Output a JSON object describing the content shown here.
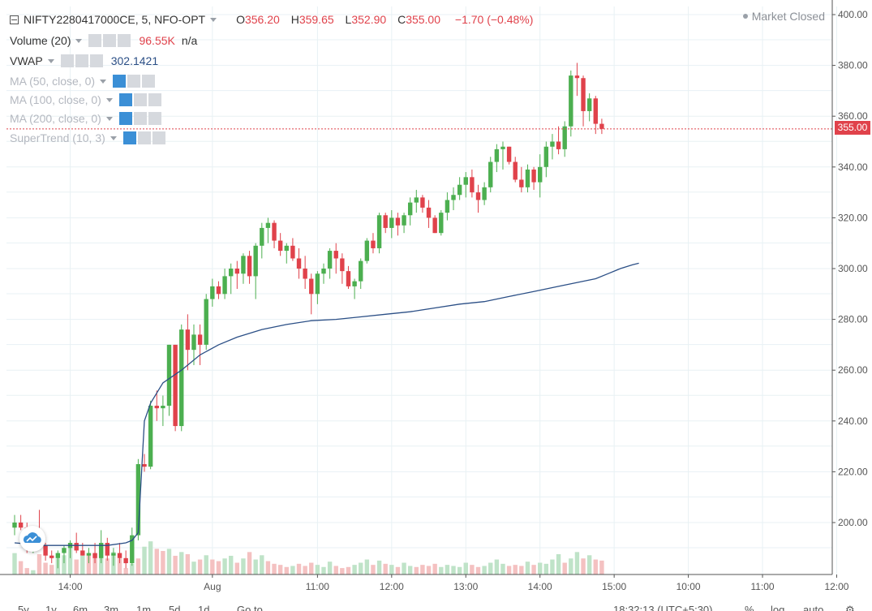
{
  "symbol_bar": {
    "symbol": "NIFTY2280417000CE, 5, NFO-OPT",
    "open_label": "O",
    "open": "356.20",
    "high_label": "H",
    "high": "359.65",
    "low_label": "L",
    "low": "352.90",
    "close_label": "C",
    "close": "355.00",
    "change": "−1.70 (−0.48%)"
  },
  "status": {
    "market": "Market Closed"
  },
  "indicators": [
    {
      "name": "Volume (20)",
      "value": "96.55K",
      "value2": "n/a",
      "faded": false
    },
    {
      "name": "VWAP",
      "value": "302.1421",
      "faded": false
    },
    {
      "name": "MA (50, close, 0)",
      "faded": true
    },
    {
      "name": "MA (100, close, 0)",
      "faded": true
    },
    {
      "name": "MA (200, close, 0)",
      "faded": true
    },
    {
      "name": "SuperTrend (10, 3)",
      "faded": true
    }
  ],
  "price_tag": "355.00",
  "colors": {
    "up": "#4caf50",
    "down": "#e0424b",
    "vwap": "#2b4f86",
    "up_volume": "#bfe3c8",
    "down_volume": "#f4c1c1",
    "grid": "#e8f1f4"
  },
  "bottom_bar": {
    "timeframes": [
      "5y",
      "1y",
      "6m",
      "3m",
      "1m",
      "5d",
      "1d"
    ],
    "goto": "Go to...",
    "clock": "18:32:13 (UTC+5:30)",
    "percent": "%",
    "log": "log",
    "auto": "auto"
  },
  "chart_data": {
    "type": "candlestick",
    "ylim": [
      185,
      405
    ],
    "y_ticks": [
      "400.00",
      "380.00",
      "360.00",
      "340.00",
      "320.00",
      "300.00",
      "280.00",
      "260.00",
      "240.00",
      "220.00",
      "200.00"
    ],
    "y_tick_values": [
      400,
      380,
      360,
      340,
      320,
      300,
      280,
      260,
      240,
      220,
      200
    ],
    "x_ticks": [
      "14:00",
      "Aug",
      "11:00",
      "12:00",
      "13:00",
      "14:00",
      "15:00",
      "10:00",
      "11:00",
      "12:00"
    ],
    "x_tick_index": [
      9,
      32,
      49,
      61,
      73,
      85,
      97,
      109,
      121,
      133
    ],
    "last_price": 355.0,
    "candles": [
      [
        198,
        203,
        195,
        200
      ],
      [
        200,
        203,
        197,
        198
      ],
      [
        198,
        200,
        188,
        190
      ],
      [
        190,
        197,
        188,
        195
      ],
      [
        195,
        205,
        190,
        191
      ],
      [
        191,
        192,
        185,
        187
      ],
      [
        187,
        189,
        184,
        186
      ],
      [
        186,
        189,
        182,
        188
      ],
      [
        188,
        191,
        184,
        190
      ],
      [
        190,
        193,
        186,
        192
      ],
      [
        192,
        196,
        188,
        189
      ],
      [
        189,
        192,
        187,
        187
      ],
      [
        187,
        190,
        184,
        188
      ],
      [
        188,
        192,
        184,
        186
      ],
      [
        186,
        197,
        184,
        192
      ],
      [
        192,
        194,
        185,
        187
      ],
      [
        187,
        190,
        183,
        188
      ],
      [
        188,
        192,
        184,
        186
      ],
      [
        186,
        189,
        182,
        184
      ],
      [
        184,
        198,
        183,
        195
      ],
      [
        195,
        225,
        193,
        223
      ],
      [
        223,
        227,
        220,
        222
      ],
      [
        222,
        248,
        221,
        246
      ],
      [
        246,
        252,
        240,
        245
      ],
      [
        245,
        250,
        238,
        246
      ],
      [
        246,
        270,
        242,
        270
      ],
      [
        270,
        270,
        236,
        238
      ],
      [
        238,
        278,
        236,
        276
      ],
      [
        276,
        282,
        260,
        268
      ],
      [
        268,
        278,
        262,
        274
      ],
      [
        274,
        278,
        262,
        270
      ],
      [
        270,
        290,
        268,
        288
      ],
      [
        288,
        296,
        285,
        293
      ],
      [
        293,
        295,
        288,
        290
      ],
      [
        290,
        300,
        288,
        297
      ],
      [
        297,
        302,
        290,
        300
      ],
      [
        300,
        303,
        292,
        298
      ],
      [
        298,
        306,
        294,
        305
      ],
      [
        305,
        307,
        294,
        297
      ],
      [
        297,
        310,
        288,
        309
      ],
      [
        309,
        318,
        304,
        316
      ],
      [
        316,
        320,
        310,
        318
      ],
      [
        318,
        319,
        308,
        311
      ],
      [
        311,
        314,
        305,
        307
      ],
      [
        307,
        310,
        302,
        309
      ],
      [
        309,
        312,
        303,
        304
      ],
      [
        304,
        308,
        296,
        300
      ],
      [
        300,
        305,
        292,
        296
      ],
      [
        296,
        298,
        282,
        290
      ],
      [
        290,
        299,
        286,
        298
      ],
      [
        298,
        302,
        294,
        300
      ],
      [
        300,
        308,
        296,
        307
      ],
      [
        307,
        310,
        298,
        304
      ],
      [
        304,
        306,
        294,
        299
      ],
      [
        299,
        301,
        292,
        293
      ],
      [
        293,
        296,
        288,
        295
      ],
      [
        295,
        304,
        292,
        303
      ],
      [
        303,
        312,
        302,
        311
      ],
      [
        311,
        314,
        306,
        308
      ],
      [
        308,
        322,
        306,
        321
      ],
      [
        321,
        322,
        314,
        316
      ],
      [
        316,
        323,
        312,
        320
      ],
      [
        320,
        322,
        313,
        317
      ],
      [
        317,
        322,
        314,
        321
      ],
      [
        321,
        328,
        317,
        326
      ],
      [
        326,
        331,
        322,
        328
      ],
      [
        328,
        329,
        322,
        324
      ],
      [
        324,
        327,
        316,
        320
      ],
      [
        320,
        321,
        314,
        314
      ],
      [
        314,
        323,
        313,
        322
      ],
      [
        322,
        330,
        319,
        327
      ],
      [
        327,
        332,
        323,
        329
      ],
      [
        329,
        336,
        327,
        333
      ],
      [
        333,
        338,
        328,
        336
      ],
      [
        336,
        339,
        328,
        330
      ],
      [
        330,
        333,
        322,
        327
      ],
      [
        327,
        334,
        325,
        332
      ],
      [
        332,
        344,
        330,
        342
      ],
      [
        342,
        349,
        338,
        347
      ],
      [
        347,
        350,
        339,
        348
      ],
      [
        348,
        348,
        341,
        342
      ],
      [
        342,
        344,
        334,
        335
      ],
      [
        335,
        340,
        330,
        332
      ],
      [
        332,
        341,
        330,
        339
      ],
      [
        339,
        340,
        331,
        334
      ],
      [
        334,
        345,
        328,
        340
      ],
      [
        340,
        350,
        336,
        348
      ],
      [
        348,
        353,
        343,
        350
      ],
      [
        350,
        356,
        345,
        347
      ],
      [
        347,
        358,
        344,
        356
      ],
      [
        356,
        378,
        352,
        376
      ],
      [
        376,
        381,
        368,
        375
      ],
      [
        375,
        376,
        356,
        362
      ],
      [
        362,
        369,
        358,
        367
      ],
      [
        367,
        368,
        353,
        357
      ],
      [
        357,
        359,
        353,
        355
      ]
    ],
    "volume": [
      [
        40,
        1
      ],
      [
        25,
        0
      ],
      [
        12,
        0
      ],
      [
        8,
        1
      ],
      [
        38,
        0
      ],
      [
        22,
        0
      ],
      [
        18,
        0
      ],
      [
        30,
        1
      ],
      [
        36,
        1
      ],
      [
        52,
        1
      ],
      [
        28,
        0
      ],
      [
        35,
        1
      ],
      [
        38,
        0
      ],
      [
        38,
        0
      ],
      [
        52,
        1
      ],
      [
        30,
        0
      ],
      [
        42,
        1
      ],
      [
        30,
        0
      ],
      [
        12,
        0
      ],
      [
        20,
        1
      ],
      [
        30,
        0
      ],
      [
        52,
        1
      ],
      [
        62,
        1
      ],
      [
        48,
        0
      ],
      [
        44,
        0
      ],
      [
        48,
        1
      ],
      [
        35,
        0
      ],
      [
        42,
        1
      ],
      [
        38,
        0
      ],
      [
        24,
        1
      ],
      [
        28,
        0
      ],
      [
        36,
        1
      ],
      [
        28,
        0
      ],
      [
        25,
        0
      ],
      [
        30,
        1
      ],
      [
        35,
        1
      ],
      [
        22,
        0
      ],
      [
        30,
        1
      ],
      [
        42,
        0
      ],
      [
        28,
        1
      ],
      [
        36,
        1
      ],
      [
        25,
        0
      ],
      [
        20,
        0
      ],
      [
        18,
        0
      ],
      [
        14,
        0
      ],
      [
        16,
        1
      ],
      [
        20,
        0
      ],
      [
        16,
        0
      ],
      [
        22,
        0
      ],
      [
        18,
        1
      ],
      [
        14,
        1
      ],
      [
        24,
        1
      ],
      [
        16,
        0
      ],
      [
        12,
        0
      ],
      [
        14,
        0
      ],
      [
        18,
        1
      ],
      [
        22,
        1
      ],
      [
        28,
        1
      ],
      [
        18,
        0
      ],
      [
        26,
        1
      ],
      [
        20,
        0
      ],
      [
        18,
        1
      ],
      [
        14,
        0
      ],
      [
        22,
        1
      ],
      [
        16,
        1
      ],
      [
        14,
        0
      ],
      [
        18,
        0
      ],
      [
        16,
        0
      ],
      [
        20,
        0
      ],
      [
        14,
        1
      ],
      [
        18,
        1
      ],
      [
        16,
        1
      ],
      [
        14,
        1
      ],
      [
        22,
        1
      ],
      [
        18,
        0
      ],
      [
        14,
        0
      ],
      [
        16,
        1
      ],
      [
        22,
        1
      ],
      [
        28,
        1
      ],
      [
        20,
        1
      ],
      [
        16,
        0
      ],
      [
        18,
        0
      ],
      [
        16,
        0
      ],
      [
        24,
        1
      ],
      [
        18,
        0
      ],
      [
        22,
        1
      ],
      [
        20,
        1
      ],
      [
        28,
        1
      ],
      [
        38,
        1
      ],
      [
        22,
        0
      ],
      [
        30,
        1
      ],
      [
        42,
        1
      ],
      [
        30,
        0
      ],
      [
        36,
        1
      ],
      [
        28,
        0
      ],
      [
        26,
        0
      ]
    ],
    "volume_scale_max": 170,
    "vwap": [
      [
        0,
        192
      ],
      [
        5,
        191
      ],
      [
        10,
        191
      ],
      [
        15,
        191
      ],
      [
        18,
        192
      ],
      [
        19,
        193
      ],
      [
        20,
        196
      ],
      [
        21,
        240
      ],
      [
        22,
        247
      ],
      [
        24,
        255
      ],
      [
        27,
        260
      ],
      [
        30,
        266
      ],
      [
        33,
        270
      ],
      [
        36,
        273
      ],
      [
        40,
        276
      ],
      [
        44,
        278
      ],
      [
        48,
        279.5
      ],
      [
        52,
        280
      ],
      [
        56,
        281
      ],
      [
        60,
        282
      ],
      [
        64,
        283
      ],
      [
        68,
        284.5
      ],
      [
        72,
        286
      ],
      [
        76,
        287
      ],
      [
        80,
        289
      ],
      [
        84,
        291
      ],
      [
        88,
        293
      ],
      [
        90,
        294
      ],
      [
        92,
        295
      ],
      [
        94,
        296
      ],
      [
        96,
        298
      ],
      [
        98,
        300
      ],
      [
        100,
        301.5
      ],
      [
        101,
        302.1
      ]
    ]
  }
}
